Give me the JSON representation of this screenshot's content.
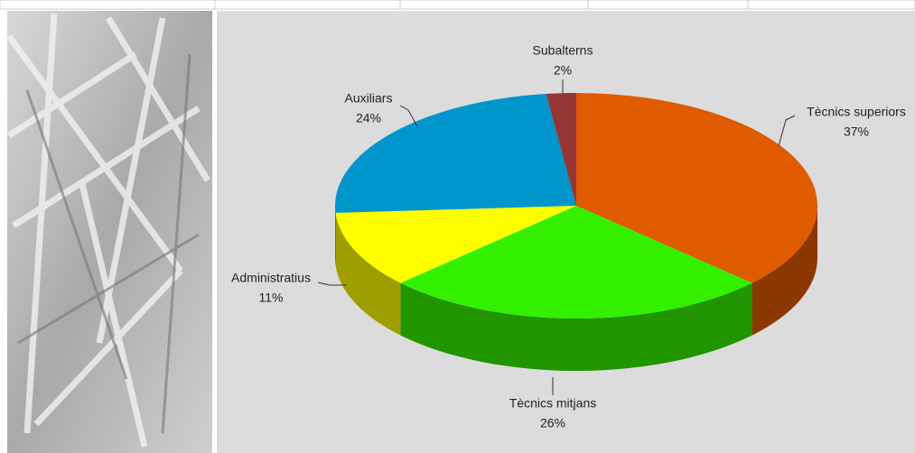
{
  "chart_data": {
    "type": "pie",
    "categories": [
      "Tècnics superiors",
      "Tècnics mitjans",
      "Administratius",
      "Auxiliars",
      "Subalterns"
    ],
    "values": [
      37,
      26,
      11,
      24,
      2
    ],
    "value_labels": [
      "37%",
      "26%",
      "11%",
      "24%",
      "2%"
    ],
    "colors": [
      "#e05a00",
      "#33f000",
      "#ffff00",
      "#0096cc",
      "#943634"
    ]
  }
}
